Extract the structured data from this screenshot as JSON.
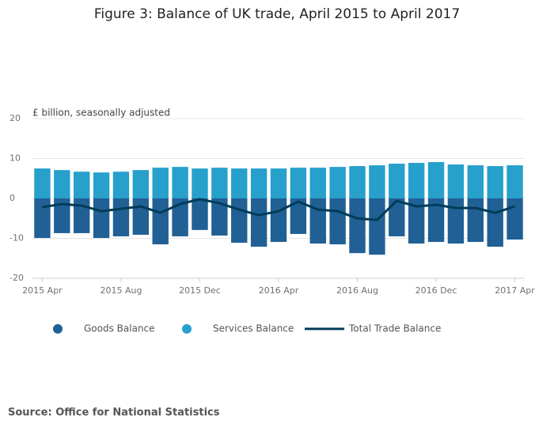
{
  "chart_data": {
    "type": "bar",
    "title": "Figure 3: Balance of UK trade, April 2015 to April 2017",
    "y_label": "£ billion, seasonally adjusted",
    "categories": [
      "2015 Apr",
      null,
      null,
      null,
      "2015 Aug",
      null,
      null,
      null,
      "2015 Dec",
      null,
      null,
      null,
      "2016 Apr",
      null,
      null,
      null,
      "2016 Aug",
      null,
      null,
      null,
      "2016 Dec",
      null,
      null,
      null,
      "2017 Apr"
    ],
    "series": [
      {
        "name": "Goods Balance",
        "type": "bar",
        "color": "#206095",
        "values": [
          -9.9,
          -8.7,
          -8.7,
          -9.9,
          -9.5,
          -9.1,
          -11.5,
          -9.5,
          -7.9,
          -9.3,
          -11.1,
          -12.1,
          -10.9,
          -8.9,
          -11.3,
          -11.5,
          -13.7,
          -14.1,
          -9.5,
          -11.3,
          -10.9,
          -11.3,
          -10.9,
          -12.1,
          -10.3
        ]
      },
      {
        "name": "Services Balance",
        "type": "bar",
        "color": "#27a0cc",
        "values": [
          7.5,
          7.1,
          6.7,
          6.5,
          6.7,
          7.1,
          7.7,
          7.9,
          7.5,
          7.7,
          7.5,
          7.5,
          7.5,
          7.7,
          7.7,
          7.9,
          8.1,
          8.3,
          8.7,
          8.9,
          9.1,
          8.5,
          8.3,
          8.1,
          8.3
        ]
      },
      {
        "name": "Total Trade Balance",
        "type": "line",
        "color": "#003c57",
        "values": [
          -2.2,
          -1.4,
          -1.8,
          -3.2,
          -2.6,
          -2.0,
          -3.6,
          -1.4,
          -0.2,
          -1.2,
          -2.8,
          -4.2,
          -3.2,
          -0.8,
          -2.8,
          -3.2,
          -5.0,
          -5.4,
          -0.6,
          -2.0,
          -1.6,
          -2.4,
          -2.4,
          -3.6,
          -2.0
        ]
      }
    ],
    "ylim": [
      -20,
      20
    ],
    "yticks": [
      20,
      10,
      0,
      -10,
      -20
    ],
    "grid": true,
    "source": "Source: Office for National Statistics"
  }
}
